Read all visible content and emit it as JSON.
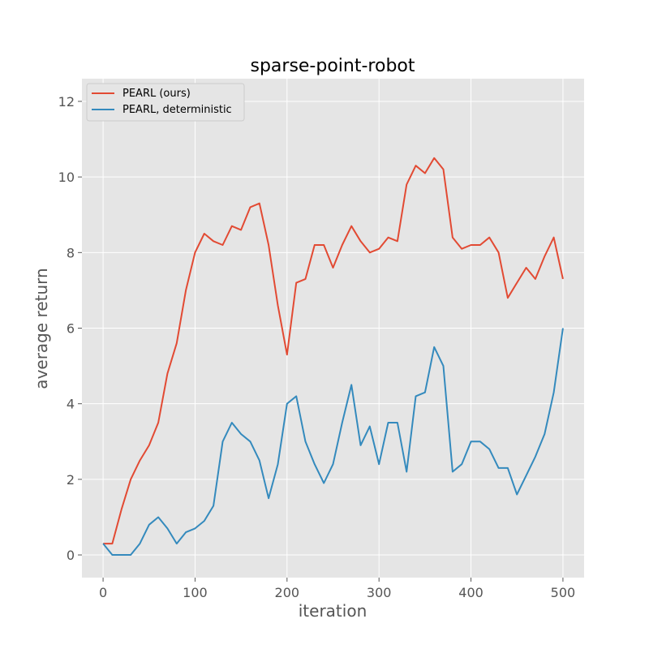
{
  "chart_data": {
    "type": "line",
    "title": "sparse-point-robot",
    "xlabel": "iteration",
    "ylabel": "average return",
    "xlim": [
      -23,
      523
    ],
    "ylim": [
      -0.6,
      12.6
    ],
    "x_ticks": [
      0,
      100,
      200,
      300,
      400,
      500
    ],
    "y_ticks": [
      0,
      2,
      4,
      6,
      8,
      10,
      12
    ],
    "grid": true,
    "legend_position": "top-left",
    "series": [
      {
        "name": "PEARL (ours)",
        "color": "#E24A33",
        "x": [
          0,
          10,
          20,
          30,
          40,
          50,
          60,
          70,
          80,
          90,
          100,
          110,
          120,
          130,
          140,
          150,
          160,
          170,
          180,
          190,
          200,
          210,
          220,
          230,
          240,
          250,
          260,
          270,
          280,
          290,
          300,
          310,
          320,
          330,
          340,
          350,
          360,
          370,
          380,
          390,
          400,
          410,
          420,
          430,
          440,
          450,
          460,
          470,
          480,
          490,
          500
        ],
        "values": [
          0.3,
          0.3,
          1.2,
          2.0,
          2.5,
          2.9,
          3.5,
          4.8,
          5.6,
          7.0,
          8.0,
          8.5,
          8.3,
          8.2,
          8.7,
          8.6,
          9.2,
          9.3,
          8.2,
          6.6,
          5.3,
          7.2,
          7.3,
          8.2,
          8.2,
          7.6,
          8.2,
          8.7,
          8.3,
          8.0,
          8.1,
          8.4,
          8.3,
          9.8,
          10.3,
          10.1,
          10.5,
          10.2,
          8.4,
          8.1,
          8.2,
          8.2,
          8.4,
          8.0,
          6.8,
          7.2,
          7.6,
          7.3,
          7.9,
          8.4,
          7.3
        ]
      },
      {
        "name": "PEARL, deterministic",
        "color": "#348ABD",
        "x": [
          0,
          10,
          20,
          30,
          40,
          50,
          60,
          70,
          80,
          90,
          100,
          110,
          120,
          130,
          140,
          150,
          160,
          170,
          180,
          190,
          200,
          210,
          220,
          230,
          240,
          250,
          260,
          270,
          280,
          290,
          300,
          310,
          320,
          330,
          340,
          350,
          360,
          370,
          380,
          390,
          400,
          410,
          420,
          430,
          440,
          450,
          460,
          470,
          480,
          490,
          500
        ],
        "values": [
          0.3,
          0.0,
          0.0,
          0.0,
          0.3,
          0.8,
          1.0,
          0.7,
          0.3,
          0.6,
          0.7,
          0.9,
          1.3,
          3.0,
          3.5,
          3.2,
          3.0,
          2.5,
          1.5,
          2.4,
          4.0,
          4.2,
          3.0,
          2.4,
          1.9,
          2.4,
          3.5,
          4.5,
          2.9,
          3.4,
          2.4,
          3.5,
          3.5,
          2.2,
          4.2,
          4.3,
          5.5,
          5.0,
          2.2,
          2.4,
          3.0,
          3.0,
          2.8,
          2.3,
          2.3,
          1.6,
          2.1,
          2.6,
          3.2,
          4.3,
          6.0
        ]
      }
    ]
  }
}
